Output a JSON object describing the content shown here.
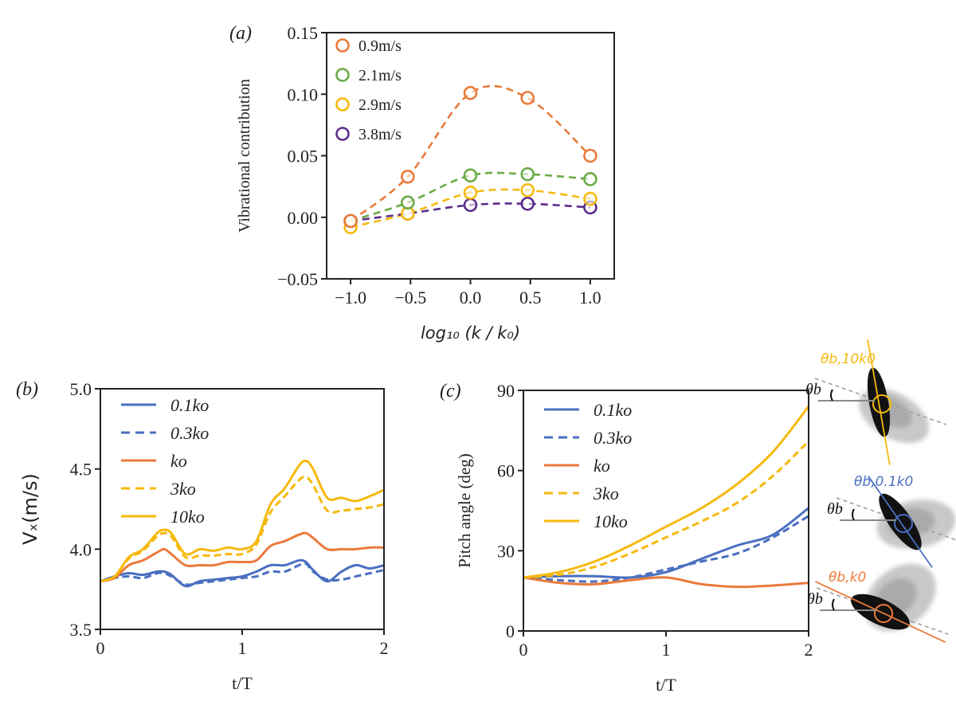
{
  "colors": {
    "blue": "#4a6fc0",
    "orange": "#ea7a3b",
    "yellow": "#f6b90e",
    "green": "#6aab46",
    "purple": "#5b2d8c",
    "axis": "#222222",
    "gray": "#9a9a9a"
  },
  "chart_data": [
    {
      "panel_label": "(a)",
      "type": "line",
      "marker": "open-circle",
      "line_style": "dashed-smooth",
      "xlabel": "log₁₀ (k / k₀)",
      "ylabel": "Vibrational contribution",
      "xlim": [
        -1.2,
        1.2
      ],
      "ylim": [
        -0.05,
        0.15
      ],
      "xticks": [
        "−1.0",
        "−0.5",
        "0.0",
        "0.5",
        "1.0"
      ],
      "xtick_values": [
        -1.0,
        -0.5,
        0.0,
        0.5,
        1.0
      ],
      "yticks": [
        "−0.05",
        "0.00",
        "0.05",
        "0.10",
        "0.15"
      ],
      "ytick_values": [
        -0.05,
        0.0,
        0.05,
        0.1,
        0.15
      ],
      "legend_position": "top-left",
      "x": [
        -1.0,
        -0.523,
        0.0,
        0.477,
        1.0
      ],
      "series": [
        {
          "name": "0.9m/s",
          "color": "#ea7a3b",
          "values": [
            -0.003,
            0.033,
            0.101,
            0.097,
            0.05
          ]
        },
        {
          "name": "2.1m/s",
          "color": "#6aab46",
          "values": [
            -0.003,
            0.012,
            0.034,
            0.035,
            0.031
          ]
        },
        {
          "name": "2.9m/s",
          "color": "#f6b90e",
          "values": [
            -0.008,
            0.003,
            0.02,
            0.022,
            0.015
          ]
        },
        {
          "name": "3.8m/s",
          "color": "#5b2d8c",
          "values": [
            -0.003,
            0.003,
            0.01,
            0.011,
            0.008
          ]
        }
      ]
    },
    {
      "panel_label": "(b)",
      "type": "line",
      "xlabel": "t/T",
      "ylabel": "Vₓ(m/s)",
      "xlim": [
        0,
        2
      ],
      "ylim": [
        3.5,
        5.0
      ],
      "xticks": [
        "0",
        "1",
        "2"
      ],
      "xtick_values": [
        0,
        1,
        2
      ],
      "yticks": [
        "3.5",
        "4.0",
        "4.5",
        "5.0"
      ],
      "ytick_values": [
        3.5,
        4.0,
        4.5,
        5.0
      ],
      "legend_position": "top-left",
      "x": [
        0,
        0.1,
        0.2,
        0.3,
        0.4,
        0.45,
        0.5,
        0.6,
        0.7,
        0.8,
        0.9,
        1.0,
        1.1,
        1.2,
        1.3,
        1.4,
        1.45,
        1.5,
        1.6,
        1.7,
        1.8,
        1.9,
        2.0
      ],
      "series": [
        {
          "name": "0.1ko",
          "color": "#4a6fc0",
          "dash": false,
          "values": [
            3.8,
            3.83,
            3.85,
            3.84,
            3.86,
            3.86,
            3.84,
            3.77,
            3.8,
            3.81,
            3.82,
            3.83,
            3.86,
            3.9,
            3.9,
            3.93,
            3.92,
            3.87,
            3.8,
            3.86,
            3.9,
            3.88,
            3.9
          ]
        },
        {
          "name": "0.3ko",
          "color": "#4a6fc0",
          "dash": true,
          "values": [
            3.8,
            3.82,
            3.83,
            3.82,
            3.85,
            3.85,
            3.83,
            3.78,
            3.79,
            3.8,
            3.81,
            3.82,
            3.83,
            3.86,
            3.86,
            3.9,
            3.91,
            3.86,
            3.81,
            3.81,
            3.83,
            3.85,
            3.87
          ]
        },
        {
          "name": "ko",
          "color": "#ea7a3b",
          "dash": false,
          "values": [
            3.8,
            3.82,
            3.9,
            3.93,
            3.98,
            4.0,
            3.97,
            3.9,
            3.9,
            3.9,
            3.92,
            3.92,
            3.93,
            4.02,
            4.05,
            4.09,
            4.1,
            4.07,
            4.0,
            4.0,
            4.0,
            4.01,
            4.01
          ]
        },
        {
          "name": "3ko",
          "color": "#f6b90e",
          "dash": true,
          "values": [
            3.8,
            3.83,
            3.94,
            3.99,
            4.08,
            4.1,
            4.08,
            3.95,
            3.96,
            3.96,
            3.97,
            3.97,
            4.03,
            4.23,
            4.33,
            4.43,
            4.45,
            4.4,
            4.24,
            4.24,
            4.25,
            4.26,
            4.28
          ]
        },
        {
          "name": "10ko",
          "color": "#f6b90e",
          "dash": false,
          "values": [
            3.8,
            3.83,
            3.95,
            4.0,
            4.1,
            4.12,
            4.1,
            3.97,
            4.0,
            3.99,
            4.01,
            4.0,
            4.05,
            4.28,
            4.38,
            4.52,
            4.55,
            4.5,
            4.32,
            4.32,
            4.3,
            4.33,
            4.37
          ]
        }
      ]
    },
    {
      "panel_label": "(c)",
      "type": "line",
      "xlabel": "t/T",
      "ylabel": "Pitch angle (deg)",
      "xlim": [
        0,
        2
      ],
      "ylim": [
        0,
        90
      ],
      "xticks": [
        "0",
        "1",
        "2"
      ],
      "xtick_values": [
        0,
        1,
        2
      ],
      "yticks": [
        "0",
        "30",
        "60",
        "90"
      ],
      "ytick_values": [
        0,
        30,
        60,
        90
      ],
      "legend_position": "top-left",
      "x": [
        0,
        0.25,
        0.5,
        0.75,
        1.0,
        1.25,
        1.5,
        1.75,
        2.0
      ],
      "series": [
        {
          "name": "0.1ko",
          "color": "#4a6fc0",
          "dash": false,
          "values": [
            20,
            20.5,
            20.5,
            20,
            22,
            27,
            32,
            36,
            46
          ]
        },
        {
          "name": "0.3ko",
          "color": "#4a6fc0",
          "dash": true,
          "values": [
            20,
            19,
            18.5,
            20,
            23,
            26,
            29,
            35,
            43
          ]
        },
        {
          "name": "ko",
          "color": "#ea7a3b",
          "dash": false,
          "values": [
            20,
            18,
            17.5,
            19,
            20,
            17.5,
            16.5,
            17,
            18
          ]
        },
        {
          "name": "3ko",
          "color": "#f6b90e",
          "dash": true,
          "values": [
            20,
            21,
            24,
            29,
            35,
            41,
            48,
            58,
            71
          ]
        },
        {
          "name": "10ko",
          "color": "#f6b90e",
          "dash": false,
          "values": [
            20,
            22,
            26,
            32,
            39,
            46,
            55,
            67,
            84
          ]
        }
      ]
    }
  ],
  "diagrams": [
    {
      "label": "θb,10k0",
      "ref_label": "θb",
      "color": "#f6b90e"
    },
    {
      "label": "θb,0.1k0",
      "ref_label": "θb",
      "color": "#4a6fc0"
    },
    {
      "label": "θb,k0",
      "ref_label": "θb",
      "color": "#ea7a3b"
    }
  ]
}
